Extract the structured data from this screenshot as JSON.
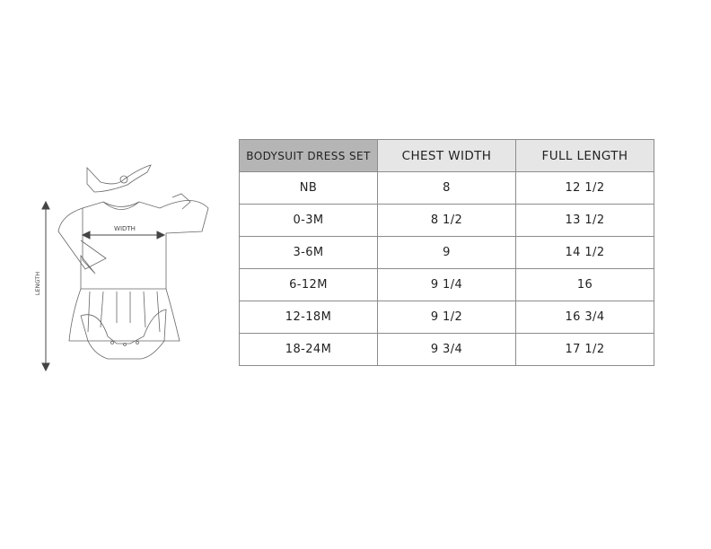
{
  "illustration": {
    "width_label": "WIDTH",
    "length_label": "LENGTH"
  },
  "table": {
    "headers": [
      "BODYSUIT DRESS SET",
      "CHEST WIDTH",
      "FULL LENGTH"
    ],
    "rows": [
      [
        "NB",
        "8",
        "12 1/2"
      ],
      [
        "0-3M",
        "8 1/2",
        "13 1/2"
      ],
      [
        "3-6M",
        "9",
        "14 1/2"
      ],
      [
        "6-12M",
        "9 1/4",
        "16"
      ],
      [
        "12-18M",
        "9 1/2",
        "16 3/4"
      ],
      [
        "18-24M",
        "9 3/4",
        "17 1/2"
      ]
    ]
  }
}
